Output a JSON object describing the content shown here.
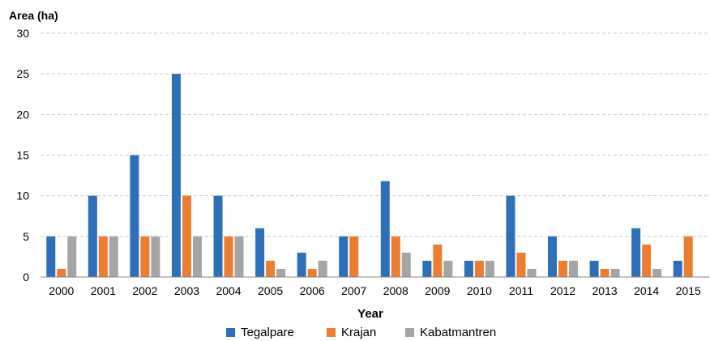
{
  "chart_data": {
    "type": "bar",
    "title": "",
    "xlabel": "Year",
    "ylabel": "Area (ha)",
    "ylim": [
      0,
      30
    ],
    "yticks": [
      0,
      5,
      10,
      15,
      20,
      25,
      30
    ],
    "grid": true,
    "legend_position": "bottom",
    "categories": [
      "2000",
      "2001",
      "2002",
      "2003",
      "2004",
      "2005",
      "2006",
      "2007",
      "2008",
      "2009",
      "2010",
      "2011",
      "2012",
      "2013",
      "2014",
      "2015"
    ],
    "series": [
      {
        "name": "Tegalpare",
        "color": "#2e6fba",
        "values": [
          5,
          10,
          15,
          25,
          10,
          6,
          3,
          5,
          11.8,
          2,
          2,
          10,
          5,
          2,
          6,
          2
        ]
      },
      {
        "name": "Krajan",
        "color": "#ed7d31",
        "values": [
          1,
          5,
          5,
          10,
          5,
          2,
          1,
          5,
          5,
          4,
          2,
          3,
          2,
          1,
          4,
          5
        ]
      },
      {
        "name": "Kabatmantren",
        "color": "#a5a5a5",
        "values": [
          5,
          5,
          5,
          5,
          5,
          1,
          2,
          0,
          3,
          2,
          2,
          1,
          2,
          1,
          1,
          0
        ]
      }
    ]
  }
}
